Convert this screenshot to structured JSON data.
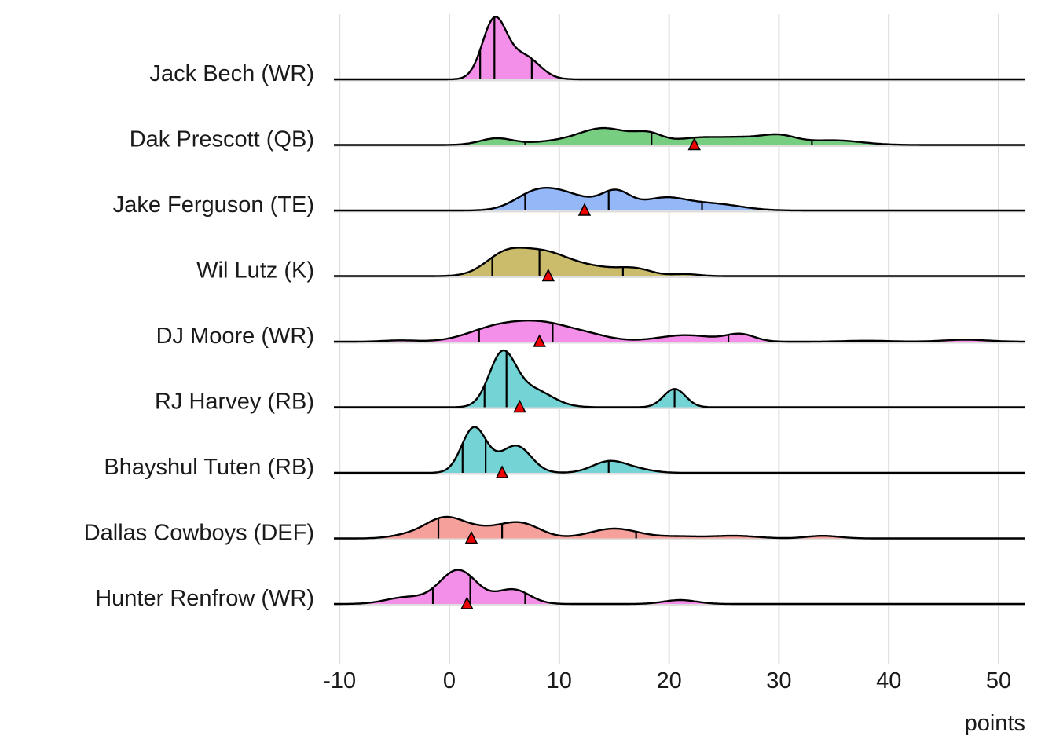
{
  "chart_data": {
    "type": "ridgeline",
    "xlabel": "points",
    "xlim": [
      -10,
      52
    ],
    "xticks": [
      -10,
      0,
      10,
      20,
      30,
      40,
      50
    ],
    "xtick_labels": [
      "-10",
      "0",
      "10",
      "20",
      "30",
      "40",
      "50"
    ],
    "grid": true,
    "density_components_note": "gaussian mixture [mean, sd, relative height]",
    "series": [
      {
        "name": "Jack Bech (WR)",
        "color": "#F48FE9",
        "quantiles": [
          2.8,
          4.1,
          7.5
        ],
        "actual": null,
        "components": [
          [
            4.1,
            1.1,
            0.9
          ],
          [
            6.8,
            1.4,
            0.35
          ]
        ]
      },
      {
        "name": "Dak Prescott (QB)",
        "color": "#77CE80",
        "quantiles": [
          6.9,
          18.4,
          33.0
        ],
        "actual": 22.3,
        "components": [
          [
            4.3,
            1.5,
            0.1
          ],
          [
            9,
            2,
            0.04
          ],
          [
            13.5,
            2.2,
            0.2
          ],
          [
            15.5,
            2,
            0.08
          ],
          [
            18.2,
            1.3,
            0.14
          ],
          [
            22.5,
            2,
            0.1
          ],
          [
            26.5,
            2,
            0.1
          ],
          [
            30,
            1.6,
            0.13
          ],
          [
            35,
            2.5,
            0.07
          ]
        ]
      },
      {
        "name": "Jake Ferguson (TE)",
        "color": "#94B7F8",
        "quantiles": [
          6.9,
          14.5,
          23.0
        ],
        "actual": 12.3,
        "components": [
          [
            7.5,
            1.8,
            0.2
          ],
          [
            10,
            2,
            0.22
          ],
          [
            13,
            2,
            0.08
          ],
          [
            15.2,
            1.3,
            0.25
          ],
          [
            19.5,
            2,
            0.18
          ],
          [
            24,
            2.5,
            0.1
          ]
        ]
      },
      {
        "name": "Wil Lutz (K)",
        "color": "#CBBC6C",
        "quantiles": [
          3.9,
          8.2,
          15.8
        ],
        "actual": 9.0,
        "components": [
          [
            5,
            1.8,
            0.3
          ],
          [
            8.5,
            2.2,
            0.33
          ],
          [
            13,
            2.5,
            0.13
          ],
          [
            17,
            1.5,
            0.09
          ],
          [
            21.5,
            1.2,
            0.03
          ]
        ]
      },
      {
        "name": "DJ Moore (WR)",
        "color": "#F48FE9",
        "quantiles": [
          2.7,
          9.4,
          25.4
        ],
        "actual": 8.2,
        "components": [
          [
            -4.5,
            1.5,
            0.02
          ],
          [
            4,
            2.5,
            0.18
          ],
          [
            8.5,
            2.8,
            0.27
          ],
          [
            13,
            2,
            0.06
          ],
          [
            21.5,
            2.5,
            0.1
          ],
          [
            26.5,
            1.3,
            0.11
          ],
          [
            38,
            2,
            0.015
          ],
          [
            47,
            2,
            0.03
          ]
        ]
      },
      {
        "name": "RJ Harvey (RB)",
        "color": "#74D3D5",
        "quantiles": [
          3.2,
          5.2,
          20.5
        ],
        "actual": 6.4,
        "components": [
          [
            4.8,
            1.2,
            0.78
          ],
          [
            7.5,
            1.8,
            0.27
          ],
          [
            20.5,
            1,
            0.28
          ]
        ]
      },
      {
        "name": "Bhayshul Tuten (RB)",
        "color": "#74D3D5",
        "quantiles": [
          1.2,
          3.3,
          14.5
        ],
        "actual": 4.8,
        "components": [
          [
            2.2,
            1.1,
            0.65
          ],
          [
            4,
            1.5,
            0.1
          ],
          [
            6.2,
            1.3,
            0.38
          ],
          [
            14.5,
            1.5,
            0.17
          ],
          [
            17,
            1.5,
            0.05
          ]
        ]
      },
      {
        "name": "Dallas Cowboys (DEF)",
        "color": "#F5A09A",
        "quantiles": [
          -1.0,
          4.8,
          17.0
        ],
        "actual": 2.0,
        "components": [
          [
            -4,
            1.5,
            0.04
          ],
          [
            -0.5,
            1.8,
            0.3
          ],
          [
            3,
            2,
            0.12
          ],
          [
            6.5,
            1.8,
            0.22
          ],
          [
            15,
            2.2,
            0.15
          ],
          [
            21,
            2,
            0.03
          ],
          [
            26,
            2,
            0.04
          ],
          [
            34,
            1.5,
            0.04
          ]
        ]
      },
      {
        "name": "Hunter Renfrow (WR)",
        "color": "#F48FE9",
        "quantiles": [
          -1.5,
          1.9,
          6.9
        ],
        "actual": 1.6,
        "components": [
          [
            -4,
            1.8,
            0.1
          ],
          [
            0.8,
            1.7,
            0.52
          ],
          [
            5.8,
            1.5,
            0.22
          ],
          [
            21,
            1.5,
            0.06
          ]
        ]
      }
    ]
  }
}
